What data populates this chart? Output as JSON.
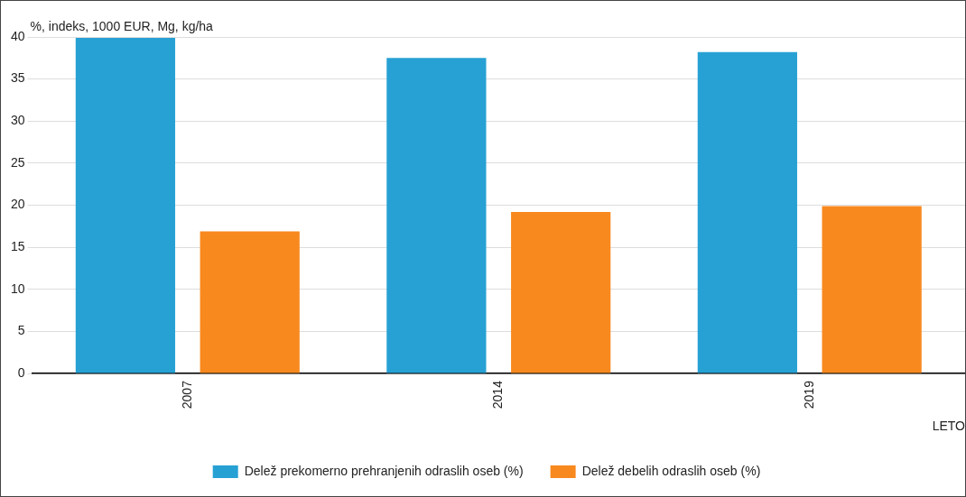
{
  "chart_data": {
    "type": "bar",
    "xlabel": "LETO",
    "ylabel": "%, indeks, 1000 EUR, Mg, kg/ha",
    "categories": [
      "2007",
      "2014",
      "2019"
    ],
    "series": [
      {
        "name": "Delež prekomerno prehranjenih odraslih oseb (%)",
        "color": "#27a1d4",
        "values": [
          39.9,
          37.5,
          38.2
        ]
      },
      {
        "name": "Delež debelih odraslih oseb (%)",
        "color": "#f8891f",
        "values": [
          16.9,
          19.2,
          19.9
        ]
      }
    ],
    "ylim": [
      0,
      40
    ],
    "yticks": [
      0,
      5,
      10,
      15,
      20,
      25,
      30,
      35,
      40
    ],
    "grid": "y",
    "legend": "bottom"
  }
}
